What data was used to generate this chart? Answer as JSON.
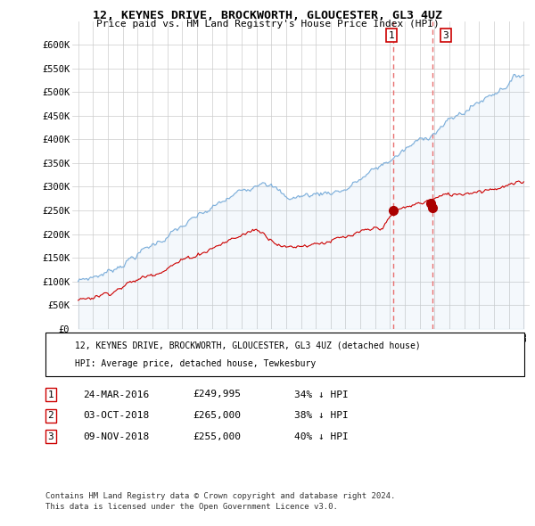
{
  "title": "12, KEYNES DRIVE, BROCKWORTH, GLOUCESTER, GL3 4UZ",
  "subtitle": "Price paid vs. HM Land Registry's House Price Index (HPI)",
  "ylabel_ticks": [
    "£0",
    "£50K",
    "£100K",
    "£150K",
    "£200K",
    "£250K",
    "£300K",
    "£350K",
    "£400K",
    "£450K",
    "£500K",
    "£550K",
    "£600K"
  ],
  "ylim": [
    0,
    650000
  ],
  "ytick_values": [
    0,
    50000,
    100000,
    150000,
    200000,
    250000,
    300000,
    350000,
    400000,
    450000,
    500000,
    550000,
    600000
  ],
  "background_color": "#ffffff",
  "grid_color": "#cccccc",
  "hpi_color": "#7aadda",
  "price_color": "#cc0000",
  "vline_color": "#e87070",
  "marker_color": "#aa0000",
  "transactions": [
    {
      "label": "1",
      "date_str": "24-MAR-2016",
      "date_num": 2016.23,
      "price": 249995,
      "pct": "34%",
      "direction": "↓"
    },
    {
      "label": "2",
      "date_str": "03-OCT-2018",
      "date_num": 2018.75,
      "price": 265000,
      "pct": "38%",
      "direction": "↓"
    },
    {
      "label": "3",
      "date_str": "09-NOV-2018",
      "date_num": 2018.86,
      "price": 255000,
      "pct": "40%",
      "direction": "↓"
    }
  ],
  "legend_property_label": "12, KEYNES DRIVE, BROCKWORTH, GLOUCESTER, GL3 4UZ (detached house)",
  "legend_hpi_label": "HPI: Average price, detached house, Tewkesbury",
  "footnote1": "Contains HM Land Registry data © Crown copyright and database right 2024.",
  "footnote2": "This data is licensed under the Open Government Licence v3.0.",
  "table_rows": [
    [
      "1",
      "24-MAR-2016",
      "£249,995",
      "34% ↓ HPI"
    ],
    [
      "2",
      "03-OCT-2018",
      "£265,000",
      "38% ↓ HPI"
    ],
    [
      "3",
      "09-NOV-2018",
      "£255,000",
      "40% ↓ HPI"
    ]
  ]
}
